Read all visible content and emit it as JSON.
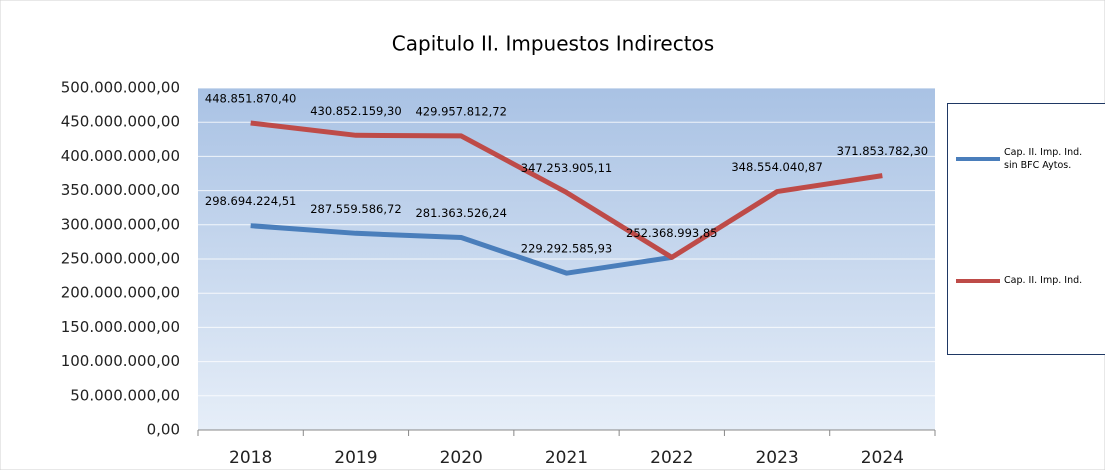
{
  "chart_data": {
    "type": "line",
    "title": "Capitulo II. Impuestos Indirectos",
    "categories": [
      "2018",
      "2019",
      "2020",
      "2021",
      "2022",
      "2023",
      "2024"
    ],
    "series": [
      {
        "name": "Cap. II. Imp. Ind. sin BFC Aytos.",
        "color": "#4a7ebb",
        "values": [
          298694224.51,
          287559586.72,
          281363526.24,
          229292585.93,
          252368993.85,
          null,
          null
        ],
        "value_labels": [
          "298.694.224,51",
          "287.559.586,72",
          "281.363.526,24",
          "229.292.585,93",
          null,
          null,
          null
        ]
      },
      {
        "name": "Cap. II. Imp. Ind.",
        "color": "#be4b48",
        "values": [
          448851870.4,
          430852159.3,
          429957812.72,
          347253905.11,
          252368993.85,
          348554040.87,
          371853782.3
        ],
        "value_labels": [
          "448.851.870,40",
          "430.852.159,30",
          "429.957.812,72",
          "347.253.905,11",
          "252.368.993,85",
          "348.554.040,87",
          "371.853.782,30"
        ]
      }
    ],
    "ylim": [
      0,
      500000000
    ],
    "yticks": [
      {
        "value": 0,
        "label": "0,00"
      },
      {
        "value": 50000000,
        "label": "50.000.000,00"
      },
      {
        "value": 100000000,
        "label": "100.000.000,00"
      },
      {
        "value": 150000000,
        "label": "150.000.000,00"
      },
      {
        "value": 200000000,
        "label": "200.000.000,00"
      },
      {
        "value": 250000000,
        "label": "250.000.000,00"
      },
      {
        "value": 300000000,
        "label": "300.000.000,00"
      },
      {
        "value": 350000000,
        "label": "350.000.000,00"
      },
      {
        "value": 400000000,
        "label": "400.000.000,00"
      },
      {
        "value": 450000000,
        "label": "450.000.000,00"
      },
      {
        "value": 500000000,
        "label": "500.000.000,00"
      }
    ],
    "grid": true,
    "legend": "right"
  }
}
